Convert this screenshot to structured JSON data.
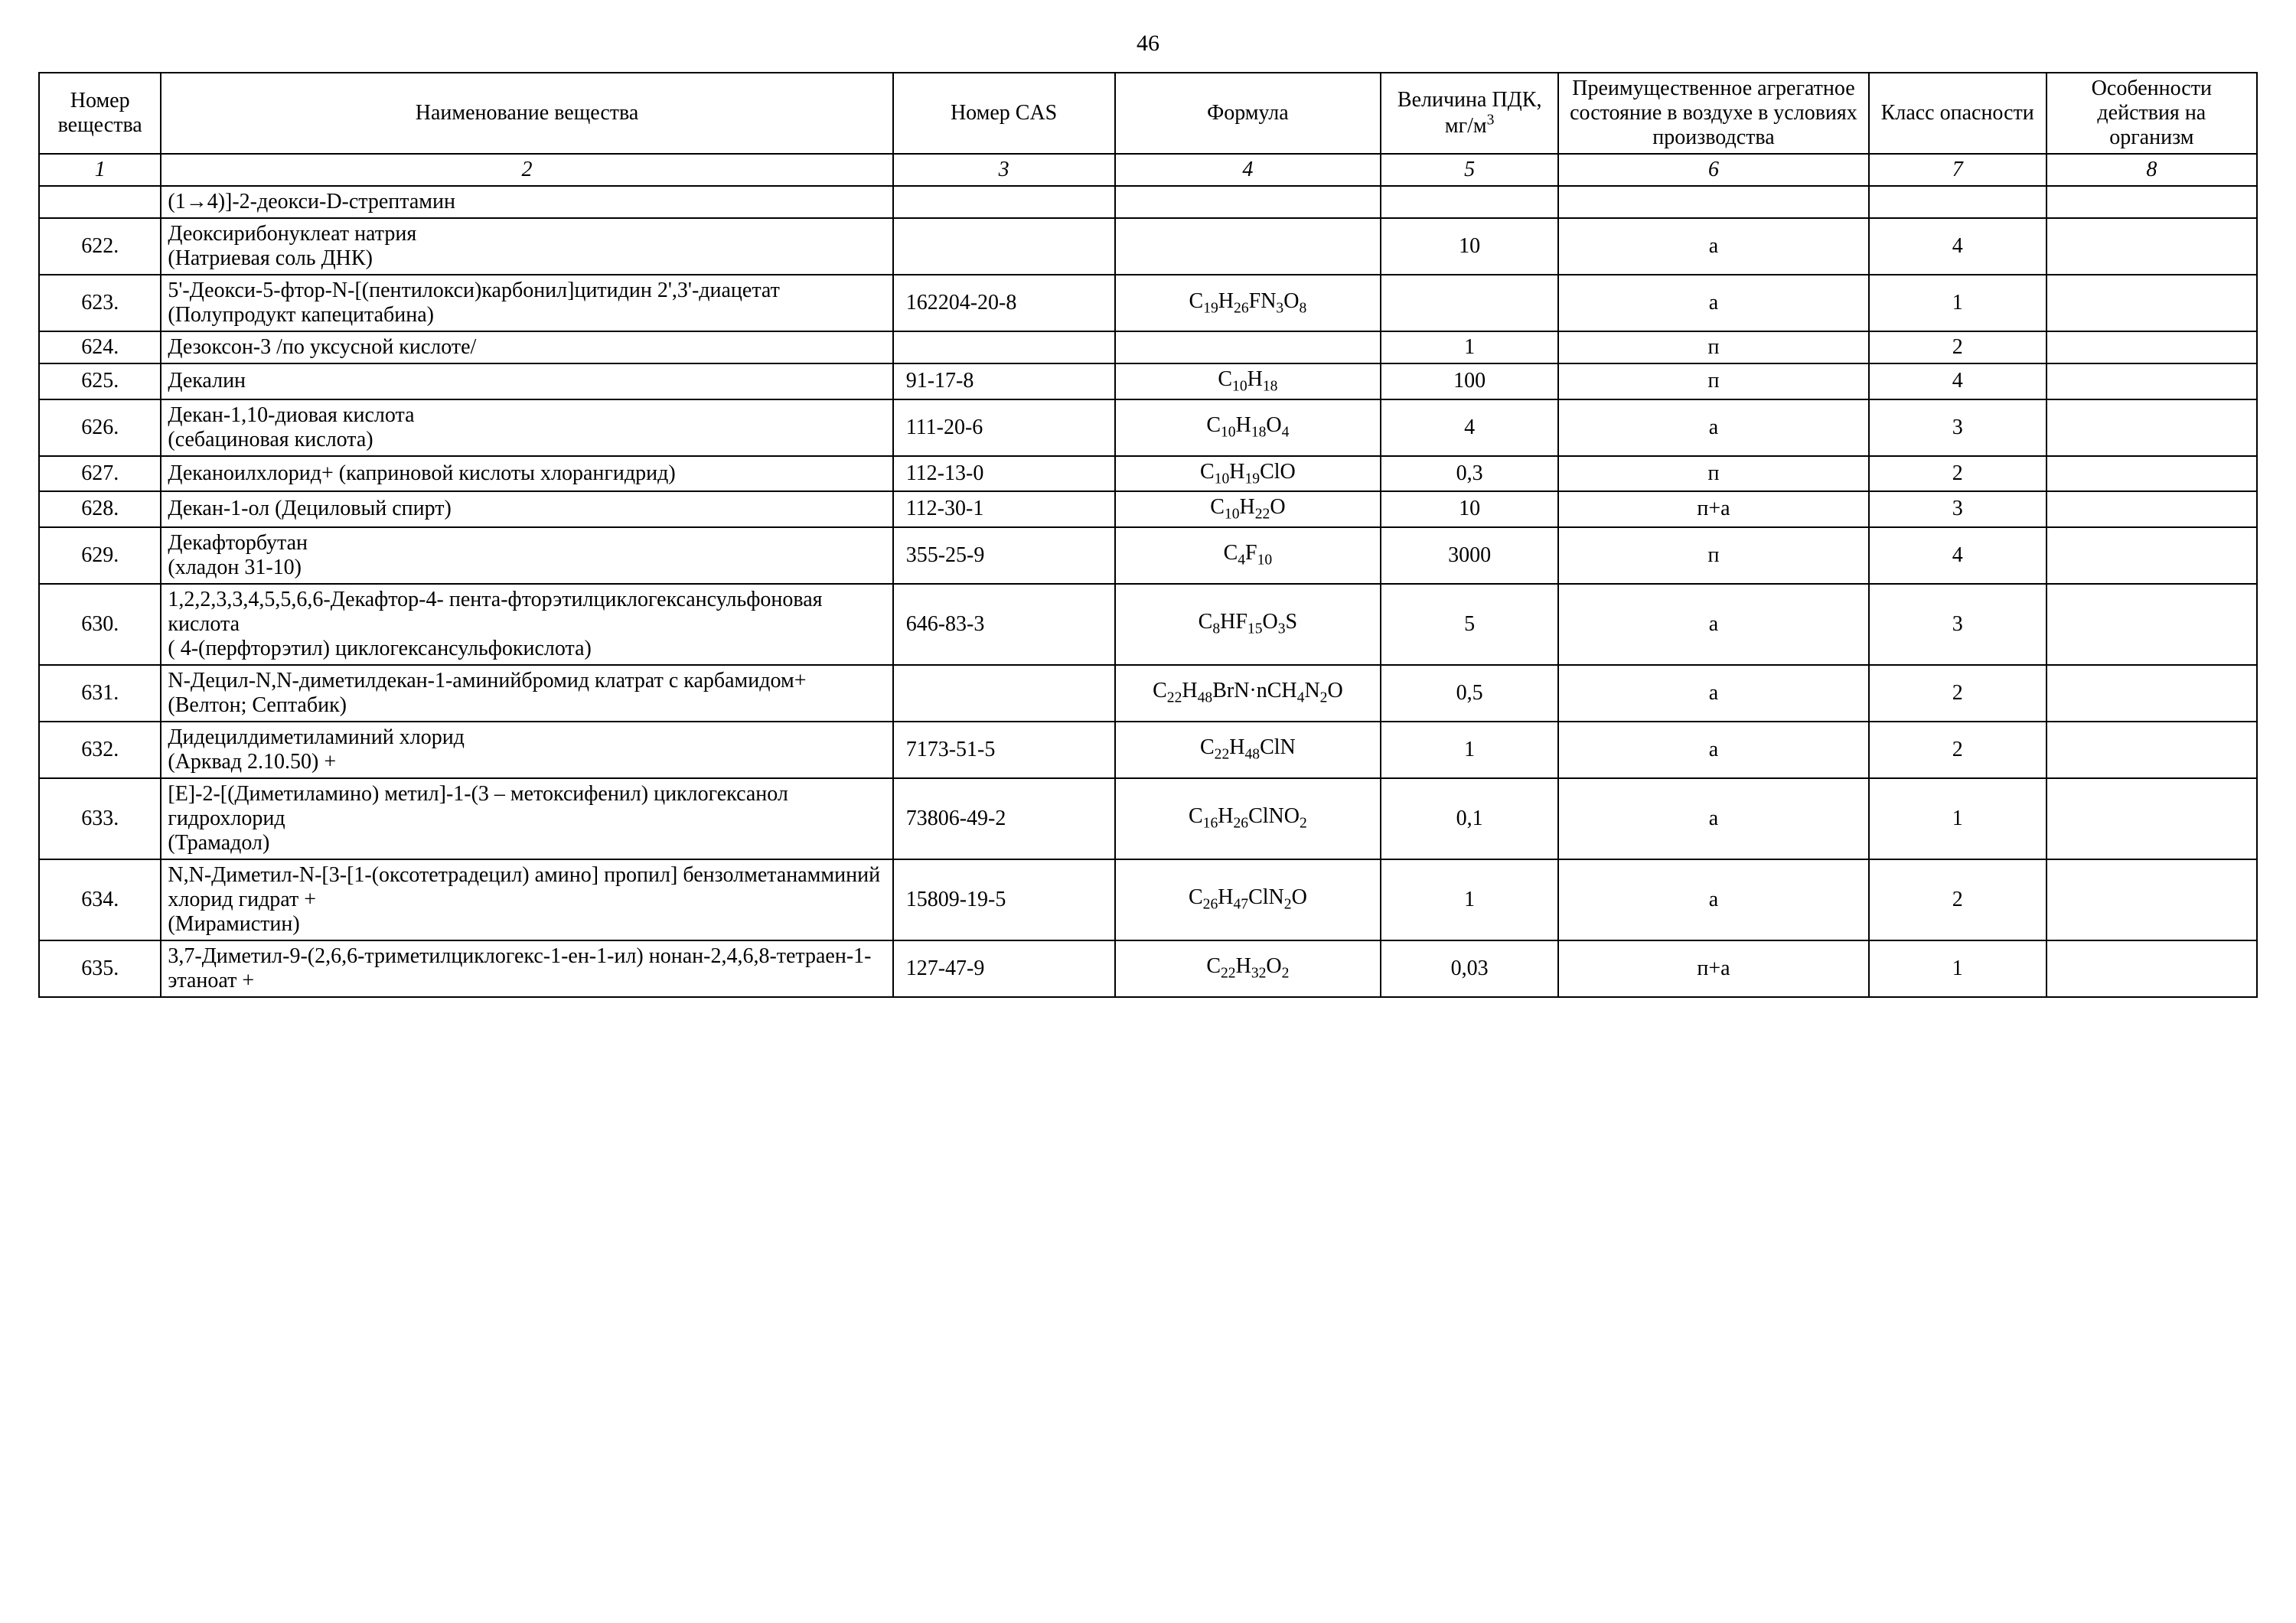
{
  "page_number": "46",
  "headers": {
    "col1": "Номер вещества",
    "col2": "Наименование вещества",
    "col3": "Номер CAS",
    "col4": "Формула",
    "col5": "Величина ПДК, мг/м³",
    "col6": "Преимущественное агрегатное состояние в воздухе в условиях производства",
    "col7": "Класс опасности",
    "col8": "Особенности действия на организм"
  },
  "num_row": [
    "1",
    "2",
    "3",
    "4",
    "5",
    "6",
    "7",
    "8"
  ],
  "columns_pct": [
    5.5,
    33,
    10,
    12,
    8,
    14,
    8,
    9.5
  ],
  "border_color": "#000000",
  "background_color": "#ffffff",
  "text_color": "#000000",
  "font_family": "Times New Roman",
  "base_font_size_pt": 14,
  "rows": [
    {
      "num": "",
      "name": "(1→4)]-2-деокси-D-стрептамин",
      "cas": "",
      "formula": "",
      "pdk": "",
      "state": "",
      "class": "",
      "effect": ""
    },
    {
      "num": "622.",
      "name": "Деоксирибонуклеат натрия\n(Натриевая соль ДНК)",
      "cas": "",
      "formula": "",
      "pdk": "10",
      "state": "а",
      "class": "4",
      "effect": ""
    },
    {
      "num": "623.",
      "name": "5'-Деокси-5-фтор-N-[(пентилокси)карбонил]цитидин 2',3'-диацетат\n(Полупродукт капецитабина)",
      "cas": "162204-20-8",
      "formula": "C₁₉H₂₆FN₃O₈",
      "pdk": "",
      "state": "а",
      "class": "1",
      "effect": ""
    },
    {
      "num": "624.",
      "name": "Дезоксон-3 /по уксусной кислоте/",
      "cas": "",
      "formula": "",
      "pdk": "1",
      "state": "п",
      "class": "2",
      "effect": ""
    },
    {
      "num": "625.",
      "name": "Декалин",
      "cas": "91-17-8",
      "formula": "C₁₀H₁₈",
      "pdk": "100",
      "state": "п",
      "class": "4",
      "effect": ""
    },
    {
      "num": "626.",
      "name": "Декан-1,10-диовая кислота\n(себациновая кислота)",
      "cas": "111-20-6",
      "formula": "C₁₀H₁₈O₄",
      "pdk": "4",
      "state": "а",
      "class": "3",
      "effect": ""
    },
    {
      "num": "627.",
      "name": "Деканоилхлорид+ (каприновой кислоты хлорангидрид)",
      "cas": "112-13-0",
      "formula": "C₁₀H₁₉ClO",
      "pdk": "0,3",
      "state": "п",
      "class": "2",
      "effect": ""
    },
    {
      "num": "628.",
      "name": "Декан-1-ол  (Дециловый спирт)",
      "cas": "112-30-1",
      "formula": "C₁₀H₂₂O",
      "pdk": "10",
      "state": "п+а",
      "class": "3",
      "effect": ""
    },
    {
      "num": "629.",
      "name": "Декафторбутан\n(хладон 31-10)",
      "cas": "355-25-9",
      "formula": "C₄F₁₀",
      "pdk": "3000",
      "state": "п",
      "class": "4",
      "effect": ""
    },
    {
      "num": "630.",
      "name": "1,2,2,3,3,4,5,5,6,6-Декафтор-4- пента-фторэтилциклогексансульфоновая кислота\n( 4-(перфторэтил) циклогексансульфокислота)",
      "cas": "646-83-3",
      "formula": "C₈HF₁₅O₃S",
      "pdk": "5",
      "state": "а",
      "class": "3",
      "effect": ""
    },
    {
      "num": "631.",
      "name": "N-Децил-N,N-диметилдекан-1-аминийбромид клатрат с карбамидом+\n(Велтон; Септабик)",
      "cas": "",
      "formula": "C₂₂H₄₈BrN·nCH₄N₂O",
      "pdk": "0,5",
      "state": "а",
      "class": "2",
      "effect": ""
    },
    {
      "num": "632.",
      "name": "Дидецилдиметиламиний хлорид\n(Арквад 2.10.50) +",
      "cas": "7173-51-5",
      "formula": "C₂₂H₄₈ClN",
      "pdk": "1",
      "state": "а",
      "class": "2",
      "effect": ""
    },
    {
      "num": "633.",
      "name": "[E]-2-[(Диметиламино) метил]-1-(3 – метоксифенил) циклогексанол гидрохлорид\n(Трамадол)",
      "cas": "73806-49-2",
      "formula": "C₁₆H₂₆ClNO₂",
      "pdk": "0,1",
      "state": "а",
      "class": "1",
      "effect": ""
    },
    {
      "num": "634.",
      "name": "N,N-Диметил-N-[3-[1-(оксотетрадецил) амино] пропил] бензолметанамминий хлорид гидрат +\n(Мирамистин)",
      "cas": "15809-19-5",
      "formula": "C₂₆H₄₇ClN₂O",
      "pdk": "1",
      "state": "а",
      "class": "2",
      "effect": ""
    },
    {
      "num": "635.",
      "name": "3,7-Диметил-9-(2,6,6-триметилциклогекс-1-ен-1-ил) нонан-2,4,6,8-тетраен-1-этаноат  +",
      "cas": "127-47-9",
      "formula": "C₂₂H₃₂O₂",
      "pdk": "0,03",
      "state": "п+а",
      "class": "1",
      "effect": ""
    }
  ]
}
